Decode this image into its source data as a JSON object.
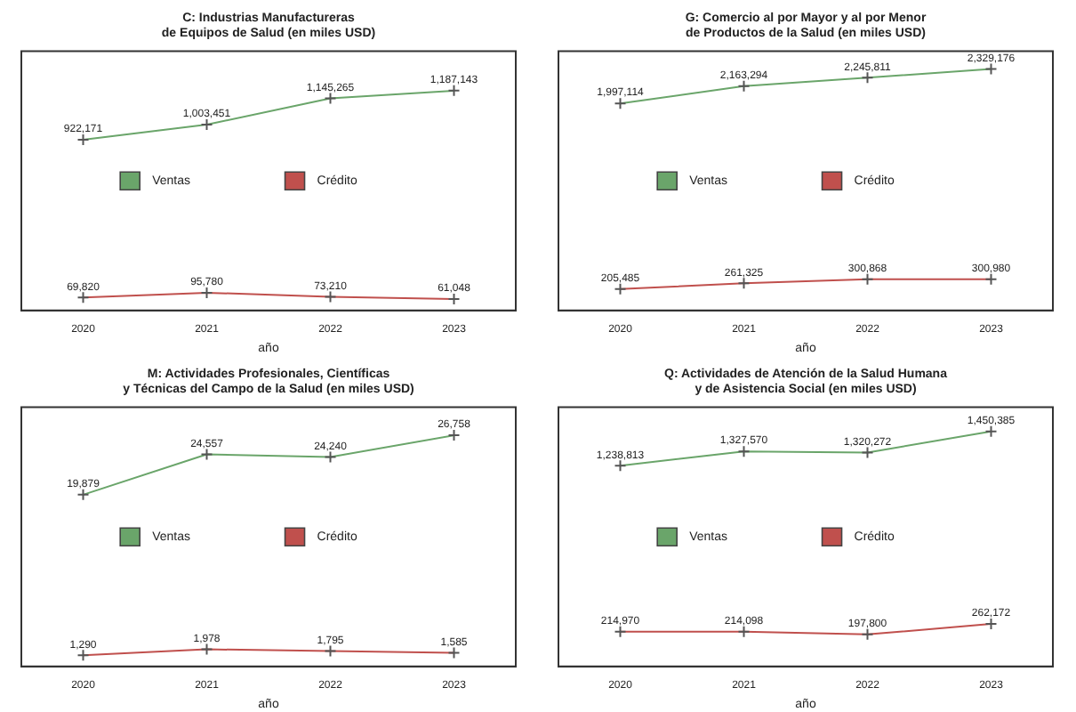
{
  "chart_data": [
    {
      "type": "line",
      "title": "C: Industrias Manufactureras\nde Equipos de Salud (en miles USD)",
      "xlabel": "año",
      "categories": [
        "2020",
        "2021",
        "2022",
        "2023"
      ],
      "legend": "center",
      "marker": "cross",
      "data_labels": true,
      "grid": false,
      "series": [
        {
          "name": "Ventas",
          "color": "#6aa56a",
          "values": [
            922171,
            1003451,
            1145265,
            1187143
          ],
          "value_labels": [
            "922,171",
            "1,003,451",
            "1,145,265",
            "1,187,143"
          ]
        },
        {
          "name": "Crédito",
          "color": "#c0504d",
          "values": [
            69820,
            95780,
            73210,
            61048
          ],
          "value_labels": [
            "69,820",
            "95,780",
            "73,210",
            "61,048"
          ]
        }
      ]
    },
    {
      "type": "line",
      "title": "G: Comercio al por Mayor y al por Menor\nde Productos de la Salud (en miles USD)",
      "xlabel": "año",
      "categories": [
        "2020",
        "2021",
        "2022",
        "2023"
      ],
      "legend": "center",
      "marker": "cross",
      "data_labels": true,
      "grid": false,
      "series": [
        {
          "name": "Ventas",
          "color": "#6aa56a",
          "values": [
            1997114,
            2163294,
            2245811,
            2329176
          ],
          "value_labels": [
            "1,997,114",
            "2,163,294",
            "2,245,811",
            "2,329,176"
          ]
        },
        {
          "name": "Crédito",
          "color": "#c0504d",
          "values": [
            205485,
            261325,
            300868,
            300980
          ],
          "value_labels": [
            "205,485",
            "261,325",
            "300,868",
            "300,980"
          ]
        }
      ]
    },
    {
      "type": "line",
      "title": "M: Actividades Profesionales, Científicas\ny Técnicas del Campo de la Salud (en miles USD)",
      "xlabel": "año",
      "categories": [
        "2020",
        "2021",
        "2022",
        "2023"
      ],
      "legend": "center",
      "marker": "cross",
      "data_labels": true,
      "grid": false,
      "series": [
        {
          "name": "Ventas",
          "color": "#6aa56a",
          "values": [
            19879,
            24557,
            24240,
            26758
          ],
          "value_labels": [
            "19,879",
            "24,557",
            "24,240",
            "26,758"
          ]
        },
        {
          "name": "Crédito",
          "color": "#c0504d",
          "values": [
            1290,
            1978,
            1795,
            1585
          ],
          "value_labels": [
            "1,290",
            "1,978",
            "1,795",
            "1,585"
          ]
        }
      ]
    },
    {
      "type": "line",
      "title": "Q: Actividades de Atención de la Salud Humana\ny de Asistencia Social (en miles USD)",
      "xlabel": "año",
      "categories": [
        "2020",
        "2021",
        "2022",
        "2023"
      ],
      "legend": "center",
      "marker": "cross",
      "data_labels": true,
      "grid": false,
      "series": [
        {
          "name": "Ventas",
          "color": "#6aa56a",
          "values": [
            1238813,
            1327570,
            1320272,
            1450385
          ],
          "value_labels": [
            "1,238,813",
            "1,327,570",
            "1,320,272",
            "1,450,385"
          ]
        },
        {
          "name": "Crédito",
          "color": "#c0504d",
          "values": [
            214970,
            214098,
            197800,
            262172
          ],
          "value_labels": [
            "214,970",
            "214,098",
            "197,800",
            "262,172"
          ]
        }
      ]
    }
  ]
}
